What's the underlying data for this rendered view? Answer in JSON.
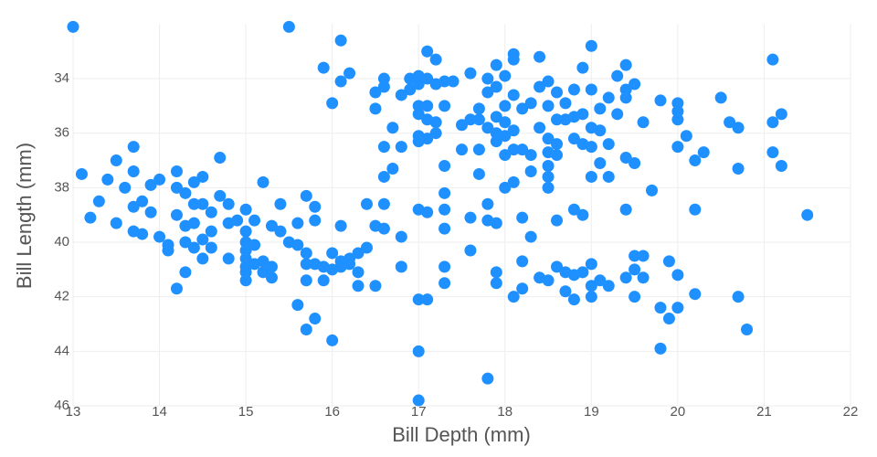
{
  "chart_data": {
    "type": "scatter",
    "x_label": "Bill Depth (mm)",
    "y_label": "Bill Length (mm)",
    "color": "#1e90ff",
    "grid": true,
    "xlim": [
      13,
      22
    ],
    "xticks": [
      13,
      14,
      15,
      16,
      17,
      18,
      19,
      20,
      21,
      22
    ],
    "ylim": [
      46,
      32
    ],
    "yticks": [
      34,
      36,
      38,
      40,
      42,
      44,
      46
    ],
    "x": [
      13.1,
      13.2,
      13.3,
      13.4,
      13.5,
      13.5,
      13.6,
      13.7,
      13.7,
      13.7,
      13.7,
      13.8,
      13.8,
      13.9,
      13.9,
      14.0,
      14.0,
      14.1,
      14.1,
      14.2,
      14.2,
      14.2,
      14.2,
      14.3,
      14.3,
      14.3,
      14.3,
      14.4,
      14.4,
      14.4,
      14.4,
      14.5,
      14.5,
      14.5,
      14.5,
      14.6,
      14.6,
      14.6,
      14.7,
      14.7,
      14.8,
      14.8,
      14.8,
      14.9,
      15.0,
      15.0,
      15.0,
      15.0,
      15.0,
      15.0,
      15.0,
      15.0,
      15.1,
      15.1,
      15.1,
      15.2,
      15.2,
      15.2,
      15.3,
      15.3,
      15.3,
      15.4,
      15.4,
      15.5,
      15.6,
      15.6,
      15.6,
      15.7,
      15.7,
      15.7,
      15.7,
      15.7,
      15.8,
      15.8,
      15.8,
      15.8,
      15.9,
      15.9,
      16.0,
      16.0,
      16.0,
      16.1,
      16.1,
      16.1,
      16.2,
      16.2,
      16.3,
      16.3,
      16.3,
      16.4,
      16.4,
      16.5,
      16.5,
      16.6,
      16.6,
      16.8,
      16.8,
      17.0,
      17.0,
      17.0,
      17.0,
      17.1,
      17.1,
      17.3,
      17.3,
      17.3,
      17.3,
      17.3,
      17.6,
      17.6,
      17.8,
      17.8,
      17.8,
      17.9,
      17.9,
      17.9,
      18.0,
      18.1,
      18.1,
      18.2,
      18.2,
      18.2,
      18.3,
      18.4,
      18.5,
      18.6,
      18.6,
      18.7,
      18.7,
      18.8,
      18.8,
      18.8,
      18.9,
      18.9,
      19.0,
      19.0,
      19.0,
      19.1,
      19.2,
      19.4,
      19.4,
      19.5,
      19.5,
      19.5,
      19.6,
      19.6,
      19.7,
      19.8,
      19.8,
      19.9,
      19.9,
      20.0,
      20.0,
      20.2,
      20.2,
      20.7,
      20.8,
      21.5,
      13.0,
      15.5,
      16.1,
      15.9,
      16.2,
      16.1,
      16.0,
      16.5,
      16.5,
      16.6,
      16.6,
      16.6,
      16.6,
      16.7,
      16.7,
      16.8,
      16.8,
      16.9,
      16.9,
      17.0,
      17.0,
      17.0,
      17.0,
      17.0,
      17.0,
      17.1,
      17.1,
      17.1,
      17.1,
      17.1,
      17.2,
      17.2,
      17.2,
      17.2,
      17.3,
      17.3,
      17.3,
      17.4,
      17.5,
      17.5,
      17.6,
      17.6,
      17.7,
      17.7,
      17.7,
      17.7,
      17.8,
      17.8,
      17.8,
      17.9,
      17.9,
      17.9,
      17.9,
      17.9,
      18.0,
      18.0,
      18.0,
      18.0,
      18.0,
      18.1,
      18.1,
      18.1,
      18.1,
      18.1,
      18.2,
      18.2,
      18.3,
      18.3,
      18.3,
      18.4,
      18.4,
      18.4,
      18.5,
      18.5,
      18.5,
      18.5,
      18.5,
      18.5,
      18.5,
      18.6,
      18.6,
      18.6,
      18.6,
      18.7,
      18.7,
      18.8,
      18.8,
      18.8,
      18.9,
      18.9,
      18.9,
      19.0,
      19.0,
      19.0,
      19.0,
      19.0,
      19.1,
      19.1,
      19.1,
      19.2,
      19.2,
      19.2,
      19.3,
      19.3,
      19.4,
      19.4,
      19.4,
      19.4,
      19.5,
      19.5,
      19.6,
      19.8,
      20.0,
      20.0,
      20.0,
      20.0,
      20.1,
      20.2,
      20.3,
      20.5,
      20.6,
      20.7,
      20.7,
      21.1,
      21.1,
      21.1,
      21.2,
      21.2
    ],
    "values": [
      37.5,
      39.1,
      38.5,
      37.7,
      37.0,
      39.3,
      38.0,
      36.5,
      37.4,
      38.7,
      39.6,
      38.5,
      39.7,
      37.9,
      38.9,
      37.7,
      39.8,
      40.3,
      40.1,
      37.4,
      38.0,
      39.0,
      41.7,
      38.2,
      39.4,
      40.0,
      41.1,
      37.8,
      38.6,
      39.3,
      40.2,
      37.6,
      38.6,
      39.9,
      40.6,
      38.9,
      39.6,
      40.2,
      36.9,
      38.3,
      38.6,
      40.6,
      39.3,
      39.2,
      38.8,
      39.6,
      40.0,
      40.3,
      40.6,
      40.9,
      41.1,
      41.4,
      39.2,
      40.1,
      40.8,
      37.8,
      40.7,
      41.1,
      39.4,
      40.9,
      41.3,
      38.6,
      39.6,
      40.0,
      39.3,
      40.1,
      42.3,
      38.3,
      40.4,
      40.8,
      41.4,
      43.2,
      38.7,
      39.2,
      40.8,
      42.8,
      40.9,
      41.4,
      41.0,
      40.4,
      43.6,
      40.7,
      39.4,
      40.9,
      40.8,
      40.6,
      40.4,
      41.1,
      41.6,
      40.2,
      38.6,
      41.6,
      39.4,
      38.6,
      39.5,
      39.8,
      40.9,
      38.8,
      42.1,
      44.0,
      45.8,
      38.9,
      42.1,
      38.2,
      38.8,
      39.5,
      40.9,
      41.5,
      39.1,
      40.3,
      38.6,
      39.2,
      45.0,
      39.3,
      41.1,
      41.5,
      38.0,
      37.8,
      42.0,
      39.1,
      40.7,
      41.7,
      39.8,
      41.3,
      41.4,
      39.2,
      40.9,
      41.1,
      41.8,
      38.8,
      41.2,
      42.1,
      39.0,
      41.1,
      40.8,
      41.6,
      42.0,
      41.4,
      41.6,
      38.8,
      41.3,
      40.5,
      41.0,
      42.0,
      40.5,
      41.3,
      38.1,
      42.4,
      43.9,
      40.7,
      42.8,
      41.2,
      42.4,
      38.8,
      41.9,
      42.0,
      43.2,
      39.0,
      32.1,
      32.1,
      32.6,
      33.6,
      33.8,
      34.1,
      34.9,
      34.5,
      35.1,
      34.0,
      34.3,
      36.5,
      37.6,
      35.8,
      37.3,
      36.5,
      34.6,
      34.0,
      34.4,
      33.9,
      34.2,
      35.0,
      35.3,
      36.1,
      36.3,
      33.0,
      34.0,
      35.0,
      35.5,
      36.2,
      33.3,
      34.2,
      35.6,
      36.0,
      34.1,
      35.0,
      37.2,
      34.1,
      35.7,
      36.6,
      33.8,
      35.5,
      35.1,
      35.5,
      36.6,
      37.5,
      34.0,
      34.5,
      35.8,
      33.5,
      34.3,
      35.4,
      36.0,
      36.3,
      33.9,
      35.0,
      35.6,
      36.1,
      36.8,
      33.1,
      33.3,
      34.6,
      35.9,
      36.6,
      35.1,
      36.6,
      34.9,
      36.8,
      37.4,
      33.2,
      34.3,
      35.8,
      34.1,
      35.0,
      36.2,
      36.7,
      37.2,
      37.6,
      38.0,
      34.5,
      35.5,
      36.4,
      36.8,
      34.9,
      35.5,
      34.4,
      35.4,
      36.2,
      33.6,
      35.3,
      36.4,
      32.8,
      34.4,
      35.8,
      36.5,
      37.6,
      35.1,
      35.9,
      37.1,
      34.7,
      36.4,
      37.6,
      35.3,
      33.9,
      34.4,
      34.7,
      33.5,
      36.9,
      34.2,
      37.1,
      35.6,
      34.8,
      34.9,
      35.2,
      35.5,
      36.5,
      36.1,
      37.0,
      36.7,
      34.7,
      35.6,
      35.8,
      37.3,
      33.3,
      35.6,
      36.7,
      35.3,
      37.2
    ]
  }
}
